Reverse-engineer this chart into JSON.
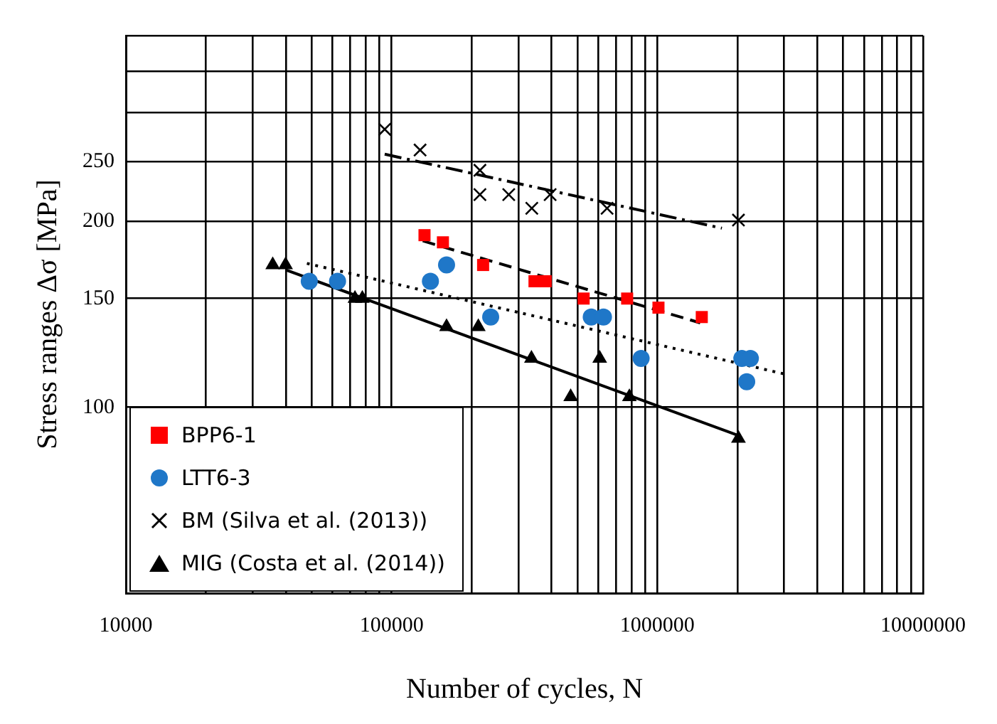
{
  "chart_data": {
    "type": "scatter",
    "xlabel": "Number of cycles, N",
    "ylabel": "Stress ranges Δσ [MPa]",
    "log": "xy",
    "grid": true,
    "legend": "bottom left",
    "xlim": [
      10000,
      10000000
    ],
    "xticks": [
      10000,
      {
        "value": 20000,
        "label": null
      },
      {
        "value": 30000,
        "label": null
      },
      {
        "value": 40000,
        "label": null
      },
      {
        "value": 50000,
        "label": null
      },
      {
        "value": 60000,
        "label": null
      },
      {
        "value": 70000,
        "label": null
      },
      {
        "value": 80000,
        "label": null
      },
      {
        "value": 90000,
        "label": null
      },
      100000,
      {
        "value": 200000,
        "label": null
      },
      {
        "value": 300000,
        "label": null
      },
      {
        "value": 400000,
        "label": null
      },
      {
        "value": 500000,
        "label": null
      },
      {
        "value": 600000,
        "label": null
      },
      {
        "value": 700000,
        "label": null
      },
      {
        "value": 800000,
        "label": null
      },
      {
        "value": 900000,
        "label": null
      },
      1000000,
      {
        "value": 2000000,
        "label": null
      },
      {
        "value": 3000000,
        "label": null
      },
      {
        "value": 4000000,
        "label": null
      },
      {
        "value": 5000000,
        "label": null
      },
      {
        "value": 6000000,
        "label": null
      },
      {
        "value": 7000000,
        "label": null
      },
      {
        "value": 8000000,
        "label": null
      },
      {
        "value": 9000000,
        "label": null
      },
      10000000
    ],
    "ylim": [
      50,
      400
    ],
    "yticks": [
      {
        "value": 50,
        "label": null
      },
      100,
      150,
      200,
      250,
      {
        "value": 300,
        "label": null
      },
      {
        "value": 350,
        "label": null
      },
      {
        "value": 400,
        "label": null
      }
    ],
    "series": [
      {
        "name": "BPP6-1",
        "type": "scatter",
        "marker": "square",
        "color": "#ff0000",
        "x": [
          133000,
          156000,
          221000,
          345000,
          380000,
          528000,
          770000,
          1010000,
          1470000
        ],
        "values": [
          190,
          185,
          170,
          160,
          160,
          150,
          150,
          145,
          140
        ]
      },
      {
        "name": "LTT6-3",
        "type": "scatter",
        "marker": "circle",
        "color": "#1f77c8",
        "x": [
          49000,
          62600,
          140000,
          161000,
          236000,
          564000,
          627000,
          869000,
          2080000,
          2240000,
          2170000
        ],
        "values": [
          160,
          160,
          160,
          170,
          140,
          140,
          140,
          120,
          120,
          120,
          110
        ]
      },
      {
        "name": "BM (Silva et al. (2013))",
        "type": "scatter",
        "marker": "cross",
        "color": "#000000",
        "x": [
          94200,
          128000,
          215000,
          215000,
          276000,
          337000,
          395000,
          647000,
          2020000
        ],
        "values": [
          282,
          261,
          242,
          221,
          221,
          210,
          221,
          210,
          201
        ]
      },
      {
        "name": "MIG (Costa et al. (2014))",
        "type": "scatter",
        "marker": "triangle",
        "color": "#000000",
        "x": [
          35700,
          39900,
          72800,
          77600,
          161000,
          212000,
          336000,
          607000,
          472000,
          785000,
          2020000
        ],
        "values": [
          170,
          170,
          150,
          150,
          135,
          135,
          120,
          120,
          104,
          104,
          89
        ]
      },
      {
        "type": "line",
        "marker": "none",
        "line_style": "dashdot",
        "color": "#000000",
        "x": [
          94200,
          1750000
        ],
        "values": [
          257,
          195
        ]
      },
      {
        "type": "line",
        "marker": "none",
        "line_style": "dashed",
        "color": "#000000",
        "x": [
          131000,
          1450000
        ],
        "values": [
          186,
          137
        ]
      },
      {
        "type": "line",
        "marker": "none",
        "line_style": "dotted",
        "color": "#000000",
        "x": [
          48000,
          3070000
        ],
        "values": [
          171,
          113
        ]
      },
      {
        "type": "line",
        "marker": "none",
        "line_style": "solid",
        "color": "#000000",
        "x": [
          39900,
          2020000
        ],
        "values": [
          167,
          90
        ]
      }
    ]
  }
}
